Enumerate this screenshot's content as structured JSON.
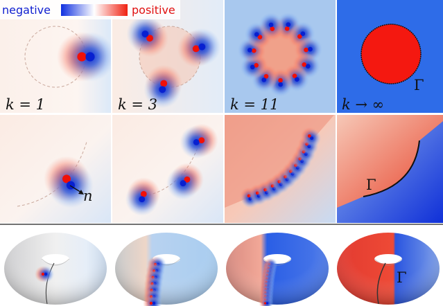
{
  "colorbar": {
    "negative": "negative",
    "positive": "positive"
  },
  "panels": [
    {
      "label": "k = 1"
    },
    {
      "label": "k = 3"
    },
    {
      "label": "k = 11"
    },
    {
      "label": "k → ∞",
      "boundary": "Γ"
    }
  ],
  "row2": {
    "normal": "n",
    "boundary": "Γ"
  },
  "row3": {
    "boundary": "Γ"
  }
}
